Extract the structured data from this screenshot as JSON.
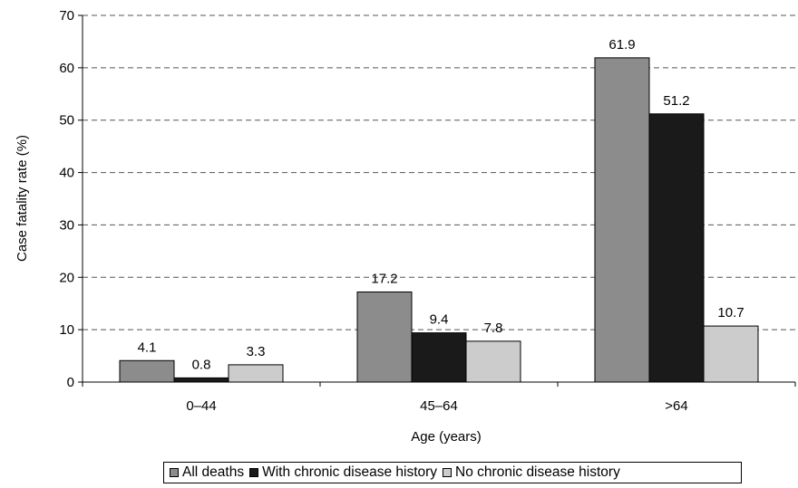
{
  "chart_data": {
    "type": "bar",
    "title": "",
    "xlabel": "Age (years)",
    "ylabel": "Case fatality rate (%)",
    "categories": [
      "0–44",
      "45–64",
      ">64"
    ],
    "ylim": [
      0,
      70
    ],
    "yticks": [
      0,
      10,
      20,
      30,
      40,
      50,
      60,
      70
    ],
    "grid": "dashed horizontal",
    "legend_position": "bottom",
    "series": [
      {
        "name": "All deaths",
        "color": "#8c8c8c",
        "values": [
          4.1,
          17.2,
          61.9
        ],
        "labels": [
          "4.1",
          "17.2",
          "61.9"
        ]
      },
      {
        "name": "With chronic disease history",
        "color": "#1a1a1a",
        "values": [
          0.8,
          9.4,
          51.2
        ],
        "labels": [
          "0.8",
          "9.4",
          "51.2"
        ]
      },
      {
        "name": "No chronic disease history",
        "color": "#cccccc",
        "values": [
          3.3,
          7.8,
          10.7
        ],
        "labels": [
          "3.3",
          "7.8",
          "10.7"
        ]
      }
    ]
  }
}
